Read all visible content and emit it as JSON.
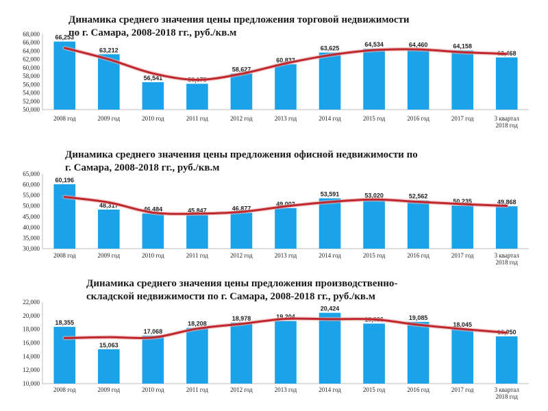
{
  "chart_data": [
    {
      "type": "bar",
      "title": "Динамика среднего значения цены предложения торговой недвижимости по г. Самара, 2008-2018 гг., руб./кв.м",
      "title_lines": [
        "Динамика среднего значения цены предложения торговой недвижимости",
        "по г. Самара, 2008-2018 гг., руб./кв.м"
      ],
      "categories": [
        "2008 год",
        "2009 год",
        "2010 год",
        "2011 год",
        "2012 год",
        "2013 год",
        "2014 год",
        "2015 год",
        "2016 год",
        "2017 год",
        "3 квартал 2018 год"
      ],
      "category_lines": [
        [
          "2008 год"
        ],
        [
          "2009 год"
        ],
        [
          "2010 год"
        ],
        [
          "2011 год"
        ],
        [
          "2012 год"
        ],
        [
          "2013 год"
        ],
        [
          "2014 год"
        ],
        [
          "2015 год"
        ],
        [
          "2016 год"
        ],
        [
          "2017 год"
        ],
        [
          "3 квартал",
          "2018 год"
        ]
      ],
      "values": [
        66253,
        63212,
        56541,
        56175,
        58627,
        60833,
        63625,
        64534,
        64460,
        64158,
        62468
      ],
      "value_labels": [
        "66,253",
        "63,212",
        "56,541",
        "56,175",
        "58,627",
        "60,833",
        "63,625",
        "64,534",
        "64,460",
        "64,158",
        "62,468"
      ],
      "ylim": [
        50000,
        68000
      ],
      "yticks": [
        "50,000",
        "52,000",
        "54,000",
        "56,000",
        "58,000",
        "60,000",
        "62,000",
        "64,000",
        "66,000",
        "68,000"
      ],
      "trend": "smoothed",
      "colors": {
        "bar": "#1aa3e8",
        "trend": "#c0272d"
      }
    },
    {
      "type": "bar",
      "title": "Динамика среднего значения цены предложения офисной недвижимости по г. Самара, 2008-2018 гг., руб./кв.м",
      "title_lines": [
        "Динамика среднего значения цены предложения офисной недвижимости по",
        "г. Самара, 2008-2018 гг., руб./кв.м"
      ],
      "categories": [
        "2008 год",
        "2009 год",
        "2010 год",
        "2011 год",
        "2012 год",
        "2013 год",
        "2014 год",
        "2015 год",
        "2016 год",
        "2017 год",
        "3 квартал 2018 год"
      ],
      "category_lines": [
        [
          "2008 год"
        ],
        [
          "2009 год"
        ],
        [
          "2010 год"
        ],
        [
          "2011 год"
        ],
        [
          "2012 год"
        ],
        [
          "2013 год"
        ],
        [
          "2014 год"
        ],
        [
          "2015 год"
        ],
        [
          "2016 год"
        ],
        [
          "2017 год"
        ],
        [
          "3 квартал",
          "2018 год"
        ]
      ],
      "values": [
        60196,
        48317,
        46484,
        45847,
        46877,
        49003,
        53591,
        53020,
        52562,
        50235,
        49868
      ],
      "value_labels": [
        "60,196",
        "48,317",
        "46,484",
        "45,847",
        "46,877",
        "49,003",
        "53,591",
        "53,020",
        "52,562",
        "50,235",
        "49,868"
      ],
      "ylim": [
        30000,
        65000
      ],
      "yticks": [
        "30,000",
        "35,000",
        "40,000",
        "45,000",
        "50,000",
        "55,000",
        "60,000",
        "65,000"
      ],
      "trend": "smoothed",
      "colors": {
        "bar": "#1aa3e8",
        "trend": "#c0272d"
      }
    },
    {
      "type": "bar",
      "title": "Динамика среднего значения цены предложения производственно-складской недвижимости по г. Самара, 2008-2018 гг., руб./кв.м",
      "title_lines": [
        "Динамика среднего значения цены предложения производственно-",
        "складской недвижимости по г. Самара, 2008-2018 гг., руб./кв.м"
      ],
      "categories": [
        "2008 год",
        "2009 год",
        "2010 год",
        "2011 год",
        "2012 год",
        "2013 год",
        "2014 год",
        "2015 год",
        "2016 год",
        "2017 год",
        "3 квартал 2018 год"
      ],
      "category_lines": [
        [
          "2008 год"
        ],
        [
          "2009 год"
        ],
        [
          "2010 год"
        ],
        [
          "2011 год"
        ],
        [
          "2012 год"
        ],
        [
          "2013 год"
        ],
        [
          "2014 год"
        ],
        [
          "2015 год"
        ],
        [
          "2016 год"
        ],
        [
          "2017 год"
        ],
        [
          "3 квартал",
          "2018 год"
        ]
      ],
      "values": [
        18355,
        15063,
        17068,
        18208,
        18978,
        19204,
        20424,
        18836,
        19085,
        18045,
        16950
      ],
      "value_labels": [
        "18,355",
        "15,063",
        "17,068",
        "18,208",
        "18,978",
        "19,204",
        "20,424",
        "18,836",
        "19,085",
        "18,045",
        "16,950"
      ],
      "ylim": [
        10000,
        22000
      ],
      "yticks": [
        "10,000",
        "12,000",
        "14,000",
        "16,000",
        "18,000",
        "20,000",
        "22,000"
      ],
      "trend": "smoothed",
      "colors": {
        "bar": "#1aa3e8",
        "trend": "#c0272d"
      }
    }
  ]
}
